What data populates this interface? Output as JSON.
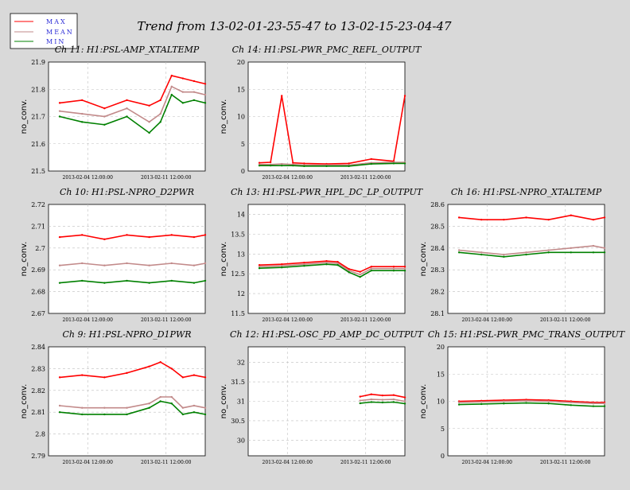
{
  "figure_title": "Trend from 13-02-01-23-55-47 to 13-02-15-23-04-47",
  "legend": [
    {
      "label": "MAX",
      "color": "#ff0000"
    },
    {
      "label": "MEAN",
      "color": "#c28a8a"
    },
    {
      "label": "MIN",
      "color": "#008000"
    }
  ],
  "colors": {
    "max": "#ff0000",
    "mean": "#c28a8a",
    "min": "#008000",
    "grid": "#bfbfbf",
    "background": "#d9d9d9"
  },
  "chart_data": [
    {
      "type": "line",
      "title": "Ch 11: H1:PSL-AMP_XTALTEMP",
      "ylabel": "no_conv.",
      "ylim": [
        21.5,
        21.9
      ],
      "yticks": [
        "21.5",
        "21.6",
        "21.7",
        "21.8",
        "21.9"
      ],
      "xticks": [
        "2013-02-04 12:00:00",
        "2013-02-11 12:00:00"
      ],
      "x": [
        "02-02",
        "02-04",
        "02-06",
        "02-08",
        "02-10",
        "02-11",
        "02-12",
        "02-13",
        "02-14",
        "02-15"
      ],
      "series": [
        {
          "name": "MAX",
          "values": [
            21.75,
            21.76,
            21.73,
            21.76,
            21.74,
            21.76,
            21.85,
            21.84,
            21.83,
            21.82
          ]
        },
        {
          "name": "MEAN",
          "values": [
            21.72,
            21.71,
            21.7,
            21.73,
            21.68,
            21.71,
            21.81,
            21.79,
            21.79,
            21.78
          ]
        },
        {
          "name": "MIN",
          "values": [
            21.7,
            21.68,
            21.67,
            21.7,
            21.64,
            21.68,
            21.78,
            21.75,
            21.76,
            21.75
          ]
        }
      ]
    },
    {
      "type": "line",
      "title": "Ch 14: H1:PSL-PWR_PMC_REFL_OUTPUT",
      "ylabel": "no_conv.",
      "ylim": [
        0,
        20
      ],
      "yticks": [
        "0",
        "5",
        "10",
        "15",
        "20"
      ],
      "xticks": [
        "2013-02-04 12:00:00",
        "2013-02-11 12:00:00"
      ],
      "x": [
        "02-02",
        "02-03",
        "02-04",
        "02-05",
        "02-06",
        "02-08",
        "02-10",
        "02-12",
        "02-14",
        "02-15"
      ],
      "series": [
        {
          "name": "MAX",
          "values": [
            1.5,
            1.6,
            13.8,
            1.5,
            1.4,
            1.3,
            1.4,
            2.2,
            1.8,
            13.8
          ]
        },
        {
          "name": "MEAN",
          "values": [
            1.2,
            1.2,
            1.3,
            1.2,
            1.1,
            1.1,
            1.1,
            1.5,
            1.6,
            1.6
          ]
        },
        {
          "name": "MIN",
          "values": [
            1.0,
            1.0,
            1.0,
            1.0,
            0.9,
            0.9,
            0.9,
            1.3,
            1.4,
            1.4
          ]
        }
      ]
    },
    {
      "type": "line",
      "title": "Ch 10: H1:PSL-NPRO_D2PWR",
      "ylabel": "no_conv.",
      "ylim": [
        2.67,
        2.72
      ],
      "yticks": [
        "2.67",
        "2.68",
        "2.69",
        "2.7",
        "2.71",
        "2.72"
      ],
      "xticks": [
        "2013-02-04 12:00:00",
        "2013-02-11 12:00:00"
      ],
      "x": [
        "02-02",
        "02-04",
        "02-06",
        "02-08",
        "02-10",
        "02-12",
        "02-14",
        "02-15"
      ],
      "series": [
        {
          "name": "MAX",
          "values": [
            2.705,
            2.706,
            2.704,
            2.706,
            2.705,
            2.706,
            2.705,
            2.706
          ]
        },
        {
          "name": "MEAN",
          "values": [
            2.692,
            2.693,
            2.692,
            2.693,
            2.692,
            2.693,
            2.692,
            2.693
          ]
        },
        {
          "name": "MIN",
          "values": [
            2.684,
            2.685,
            2.684,
            2.685,
            2.684,
            2.685,
            2.684,
            2.685
          ]
        }
      ]
    },
    {
      "type": "line",
      "title": "Ch 13: H1:PSL-PWR_HPL_DC_LP_OUTPUT",
      "ylabel": "no_conv.",
      "ylim": [
        11.5,
        14.25
      ],
      "yticks": [
        "11.5",
        "12",
        "12.5",
        "13",
        "13.5",
        "14"
      ],
      "xticks": [
        "2013-02-04 12:00:00",
        "2013-02-11 12:00:00"
      ],
      "x": [
        "02-02",
        "02-04",
        "02-06",
        "02-08",
        "02-09",
        "02-10",
        "02-11",
        "02-12",
        "02-14",
        "02-15"
      ],
      "series": [
        {
          "name": "MAX",
          "values": [
            12.72,
            12.74,
            12.78,
            12.82,
            12.8,
            12.62,
            12.55,
            12.68,
            12.68,
            12.68
          ]
        },
        {
          "name": "MEAN",
          "values": [
            12.68,
            12.7,
            12.74,
            12.78,
            12.76,
            12.58,
            12.48,
            12.63,
            12.63,
            12.63
          ]
        },
        {
          "name": "MIN",
          "values": [
            12.64,
            12.66,
            12.7,
            12.74,
            12.72,
            12.54,
            12.42,
            12.58,
            12.58,
            12.58
          ]
        }
      ]
    },
    {
      "type": "line",
      "title": "Ch 16: H1:PSL-NPRO_XTALTEMP",
      "ylabel": "no_conv.",
      "ylim": [
        28.1,
        28.6
      ],
      "yticks": [
        "28.1",
        "28.2",
        "28.3",
        "28.4",
        "28.5",
        "28.6"
      ],
      "xticks": [
        "2013-02-04 12:00:00",
        "2013-02-11 12:00:00"
      ],
      "x": [
        "02-02",
        "02-04",
        "02-06",
        "02-08",
        "02-10",
        "02-12",
        "02-14",
        "02-15"
      ],
      "series": [
        {
          "name": "MAX",
          "values": [
            28.54,
            28.53,
            28.53,
            28.54,
            28.53,
            28.55,
            28.53,
            28.54
          ]
        },
        {
          "name": "MEAN",
          "values": [
            28.39,
            28.38,
            28.37,
            28.38,
            28.39,
            28.4,
            28.41,
            28.4
          ]
        },
        {
          "name": "MIN",
          "values": [
            28.38,
            28.37,
            28.36,
            28.37,
            28.38,
            28.38,
            28.38,
            28.38
          ]
        }
      ]
    },
    {
      "type": "line",
      "title": "Ch 9: H1:PSL-NPRO_D1PWR",
      "ylabel": "no_conv.",
      "ylim": [
        2.79,
        2.84
      ],
      "yticks": [
        "2.79",
        "2.8",
        "2.81",
        "2.82",
        "2.83",
        "2.84"
      ],
      "xticks": [
        "2013-02-04 12:00:00",
        "2013-02-11 12:00:00"
      ],
      "x": [
        "02-02",
        "02-04",
        "02-06",
        "02-08",
        "02-10",
        "02-11",
        "02-12",
        "02-13",
        "02-14",
        "02-15"
      ],
      "series": [
        {
          "name": "MAX",
          "values": [
            2.826,
            2.827,
            2.826,
            2.828,
            2.831,
            2.833,
            2.83,
            2.826,
            2.827,
            2.826
          ]
        },
        {
          "name": "MEAN",
          "values": [
            2.813,
            2.812,
            2.812,
            2.812,
            2.814,
            2.817,
            2.817,
            2.812,
            2.813,
            2.812
          ]
        },
        {
          "name": "MIN",
          "values": [
            2.81,
            2.809,
            2.809,
            2.809,
            2.812,
            2.815,
            2.814,
            2.809,
            2.81,
            2.809
          ]
        }
      ]
    },
    {
      "type": "line",
      "title": "Ch 12: H1:PSL-OSC_PD_AMP_DC_OUTPUT",
      "ylabel": "no_conv.",
      "ylim": [
        29.6,
        32.4
      ],
      "yticks": [
        "30",
        "30.5",
        "31",
        "31.5",
        "32"
      ],
      "xticks": [
        "2013-02-04 12:00:00",
        "2013-02-11 12:00:00"
      ],
      "x": [
        "02-11",
        "02-12",
        "02-13",
        "02-14",
        "02-15"
      ],
      "series": [
        {
          "name": "MAX",
          "values": [
            31.12,
            31.18,
            31.15,
            31.16,
            31.1
          ]
        },
        {
          "name": "MEAN",
          "values": [
            31.02,
            31.05,
            31.04,
            31.05,
            31.0
          ]
        },
        {
          "name": "MIN",
          "values": [
            30.95,
            30.98,
            30.97,
            30.98,
            30.94
          ]
        }
      ]
    },
    {
      "type": "line",
      "title": "Ch 15: H1:PSL-PWR_PMC_TRANS_OUTPUT",
      "ylabel": "no_conv.",
      "ylim": [
        0,
        20
      ],
      "yticks": [
        "0",
        "5",
        "10",
        "15",
        "20"
      ],
      "xticks": [
        "2013-02-04 12:00:00",
        "2013-02-11 12:00:00"
      ],
      "x": [
        "02-02",
        "02-04",
        "02-06",
        "02-08",
        "02-10",
        "02-12",
        "02-14",
        "02-15"
      ],
      "series": [
        {
          "name": "MAX",
          "values": [
            10.0,
            10.1,
            10.2,
            10.3,
            10.2,
            10.0,
            9.8,
            9.8
          ]
        },
        {
          "name": "MEAN",
          "values": [
            9.8,
            9.9,
            10.0,
            10.1,
            10.0,
            9.8,
            9.6,
            9.6
          ]
        },
        {
          "name": "MIN",
          "values": [
            9.4,
            9.5,
            9.6,
            9.7,
            9.6,
            9.3,
            9.1,
            9.1
          ]
        }
      ]
    }
  ]
}
